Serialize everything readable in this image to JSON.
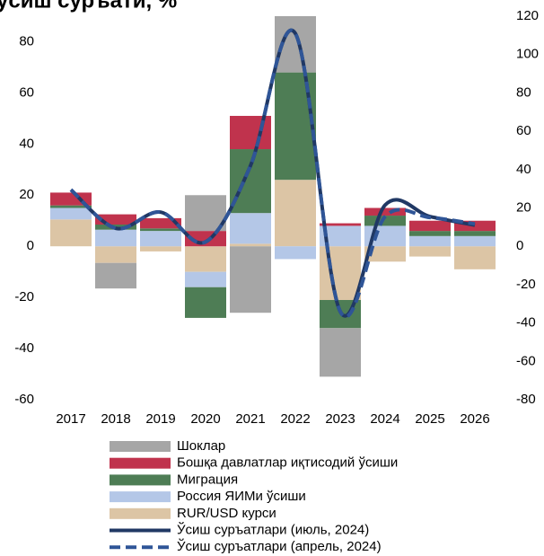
{
  "chart_data": {
    "type": "bar",
    "stacked": true,
    "title": "ўсиш суръати, %",
    "categories": [
      "2017",
      "2018",
      "2019",
      "2020",
      "2021",
      "2022",
      "2023",
      "2024",
      "2025",
      "2026"
    ],
    "series": [
      {
        "name": "Шоклар",
        "color": "#a6a6a6",
        "values": [
          0,
          -10,
          0,
          14,
          -26,
          22,
          -19,
          0,
          0,
          0
        ]
      },
      {
        "name": "Бошқа давлатлар иқтисодий ўсиши",
        "color": "#c0334d",
        "values": [
          5,
          4,
          4,
          6,
          13,
          0,
          1,
          3,
          4,
          4
        ]
      },
      {
        "name": "Миграция",
        "color": "#4e7d55",
        "values": [
          1,
          2,
          1,
          -12,
          25,
          42,
          -11,
          4,
          2,
          2
        ]
      },
      {
        "name": "Россия ЯИМи ўсиши",
        "color": "#b4c7e7",
        "values": [
          4.5,
          6.5,
          6,
          -6,
          12,
          -5,
          8,
          8,
          4,
          4
        ]
      },
      {
        "name": "RUR/USD курси",
        "color": "#dcc5a5",
        "values": [
          10.5,
          -6.5,
          -2,
          -10,
          1,
          26,
          -21,
          -6,
          -4,
          -9
        ]
      },
      {
        "name": "Ўсиш суръатлари (июль, 2024)",
        "type": "line",
        "axis": "y2",
        "color": "#203864",
        "dashed": false,
        "values": [
          29.5,
          9.4,
          17.8,
          2.3,
          42,
          111,
          -34,
          21.5,
          15.5,
          11
        ]
      },
      {
        "name": "Ўсиш суръатлари (апрель, 2024)",
        "type": "line",
        "axis": "y2",
        "color": "#2f5597",
        "dashed": true,
        "values": [
          29.5,
          9.4,
          17.8,
          2.3,
          42,
          111,
          -34,
          15.5,
          15,
          11.7
        ]
      }
    ],
    "ylim": [
      -60,
      90
    ],
    "yticks": [
      -60,
      -40,
      -20,
      0,
      20,
      40,
      60,
      80
    ],
    "y2lim": [
      -80,
      120
    ],
    "y2ticks": [
      -80,
      -60,
      -40,
      -20,
      0,
      20,
      40,
      60,
      80,
      100,
      120
    ],
    "grid": false,
    "legend": "bottom"
  }
}
